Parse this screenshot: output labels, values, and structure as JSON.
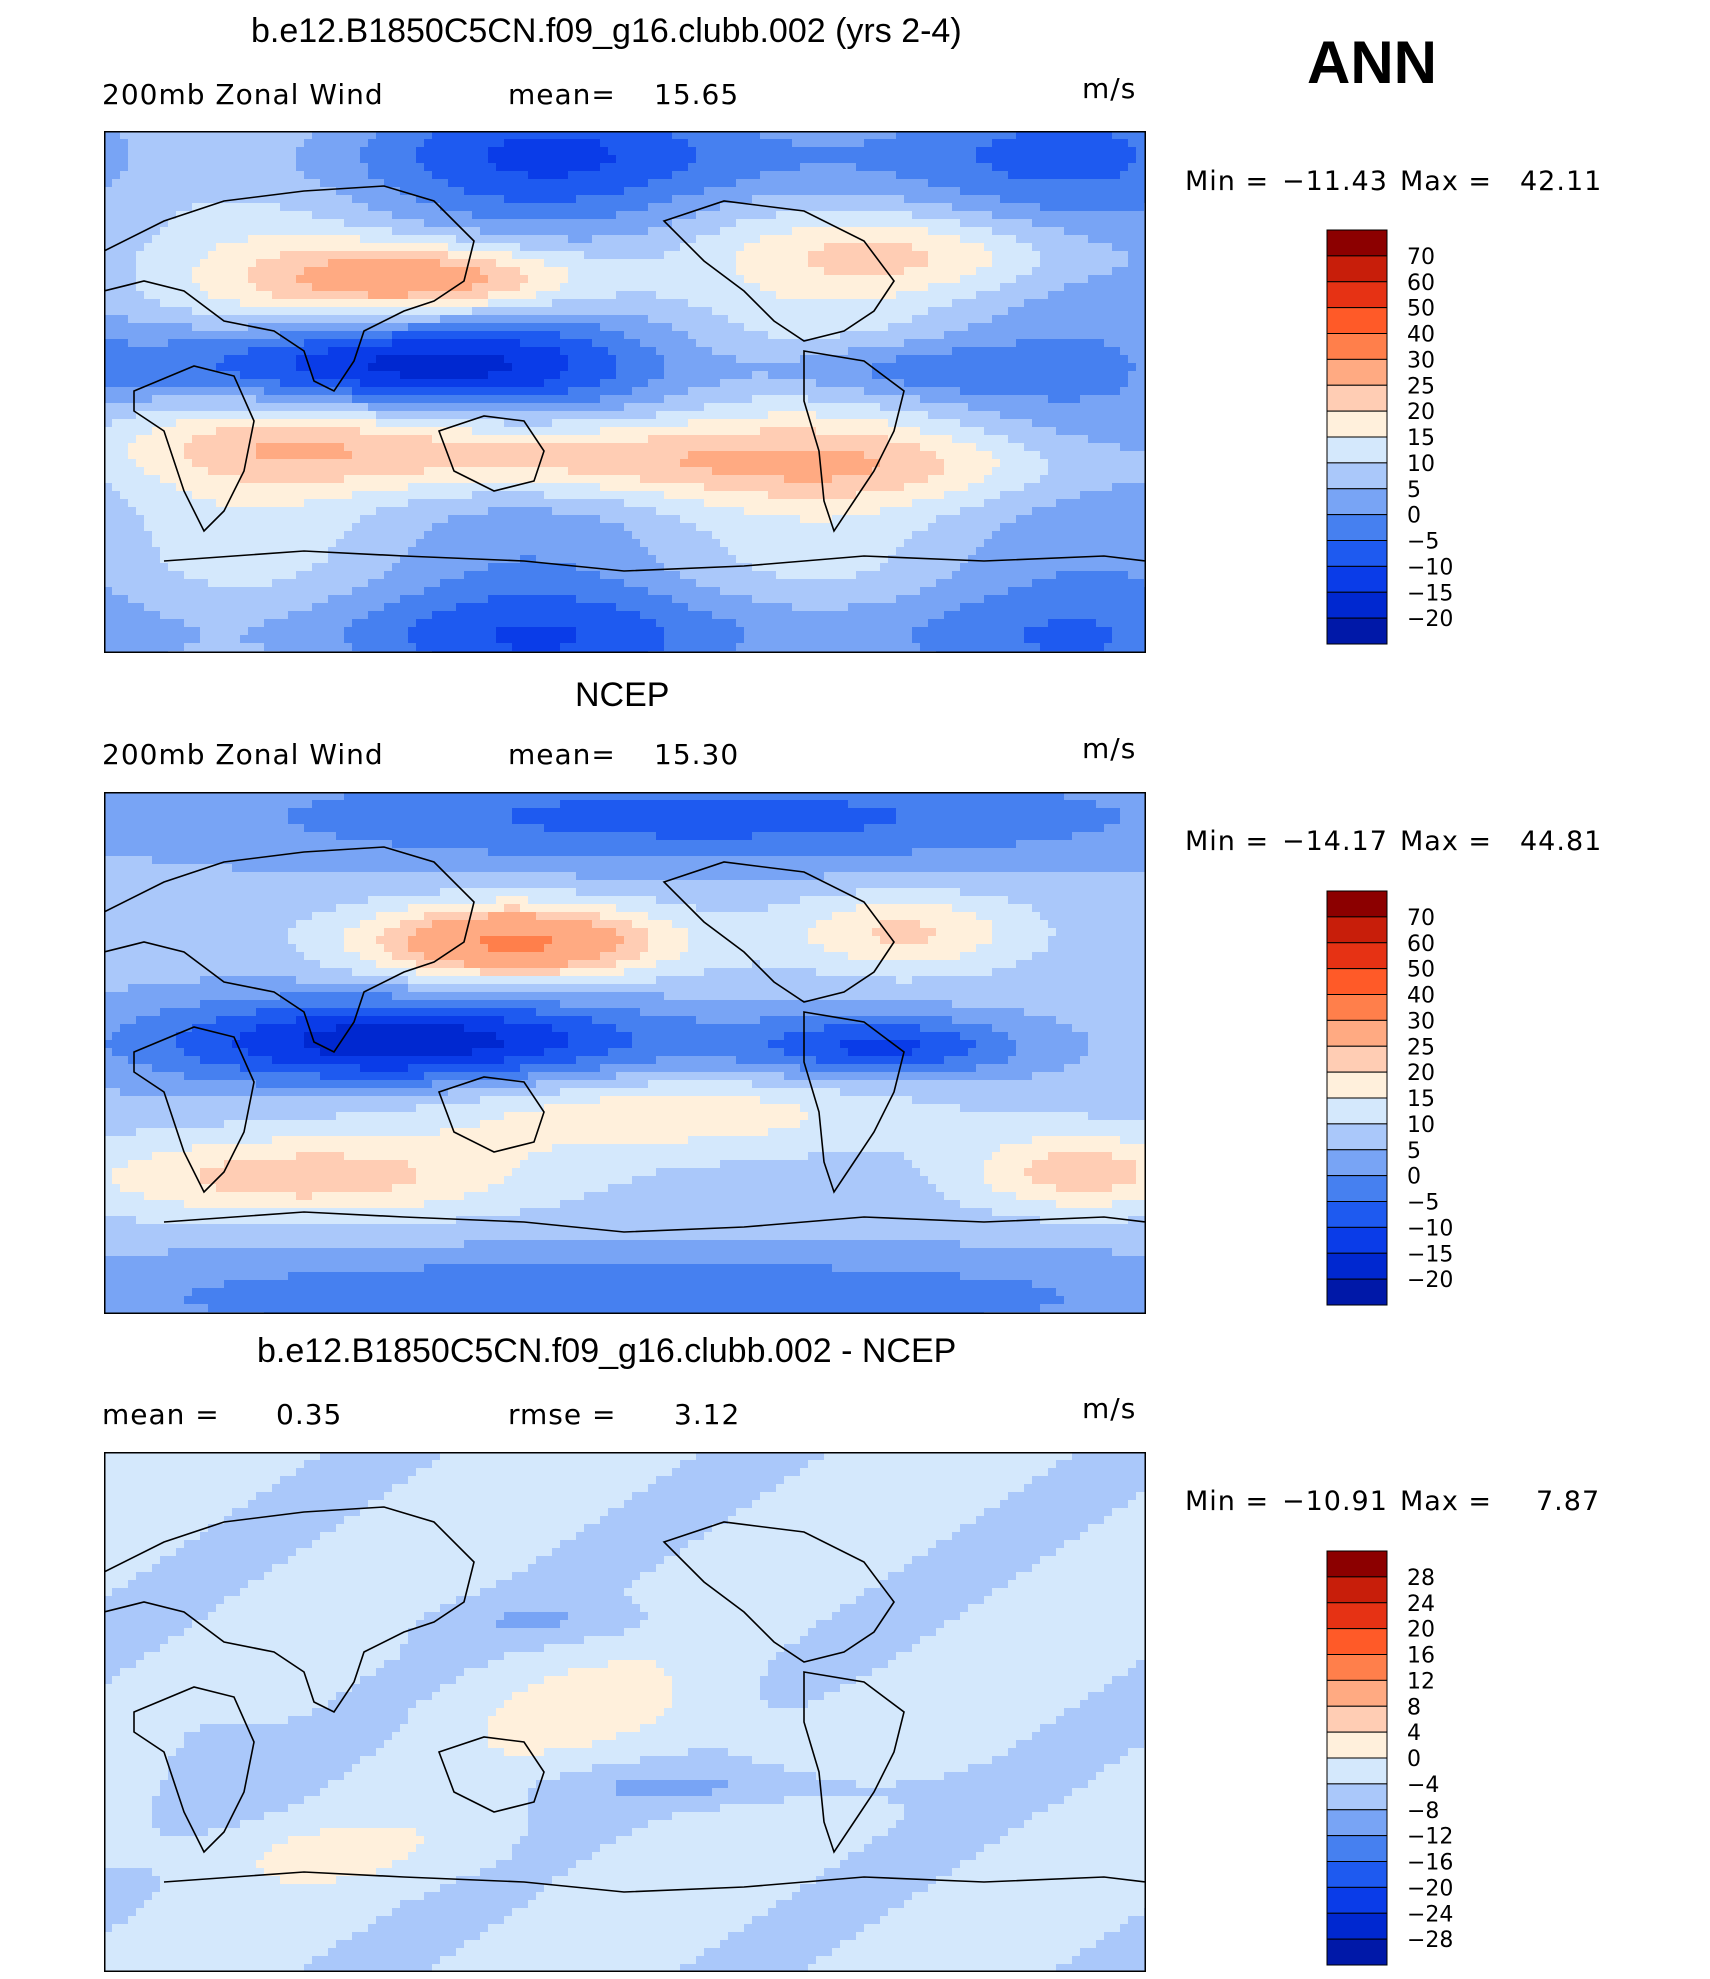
{
  "season": "ANN",
  "units_label": "m/s",
  "panels": [
    {
      "title": "b.e12.B1850C5CN.f09_g16.clubb.002 (yrs 2-4)",
      "left_label": "200mb Zonal Wind",
      "stat_label": "mean=",
      "stat_value": "15.65",
      "min_label": "Min =",
      "min_value": "−11.43",
      "max_label": "Max =",
      "max_value": "42.11",
      "colorbar_ticks": [
        "70",
        "60",
        "50",
        "40",
        "30",
        "25",
        "20",
        "15",
        "10",
        "5",
        "0",
        "−5",
        "−10",
        "−15",
        "−20"
      ]
    },
    {
      "title": "NCEP",
      "left_label": "200mb Zonal Wind",
      "stat_label": "mean=",
      "stat_value": "15.30",
      "min_label": "Min =",
      "min_value": "−14.17",
      "max_label": "Max =",
      "max_value": "44.81",
      "colorbar_ticks": [
        "70",
        "60",
        "50",
        "40",
        "30",
        "25",
        "20",
        "15",
        "10",
        "5",
        "0",
        "−5",
        "−10",
        "−15",
        "−20"
      ]
    },
    {
      "title": "b.e12.B1850C5CN.f09_g16.clubb.002 - NCEP",
      "left_label": "mean =",
      "left_value": "0.35",
      "stat_label": "rmse =",
      "stat_value": "3.12",
      "min_label": "Min =",
      "min_value": "−10.91",
      "max_label": "Max =",
      "max_value": "7.87",
      "colorbar_ticks": [
        "28",
        "24",
        "20",
        "16",
        "12",
        "8",
        "4",
        "0",
        "−4",
        "−8",
        "−12",
        "−16",
        "−20",
        "−24",
        "−28"
      ]
    }
  ],
  "colors": {
    "palette_16": [
      "#000080",
      "#0018a8",
      "#0028d0",
      "#0a3ce8",
      "#1e5af0",
      "#4680f0",
      "#78a4f5",
      "#aac8fa",
      "#d4e8fc",
      "#fff0dc",
      "#ffcdb4",
      "#ffaa82",
      "#ff7f4b",
      "#ff5a28",
      "#e63214",
      "#c81e0a",
      "#8c0000"
    ]
  }
}
